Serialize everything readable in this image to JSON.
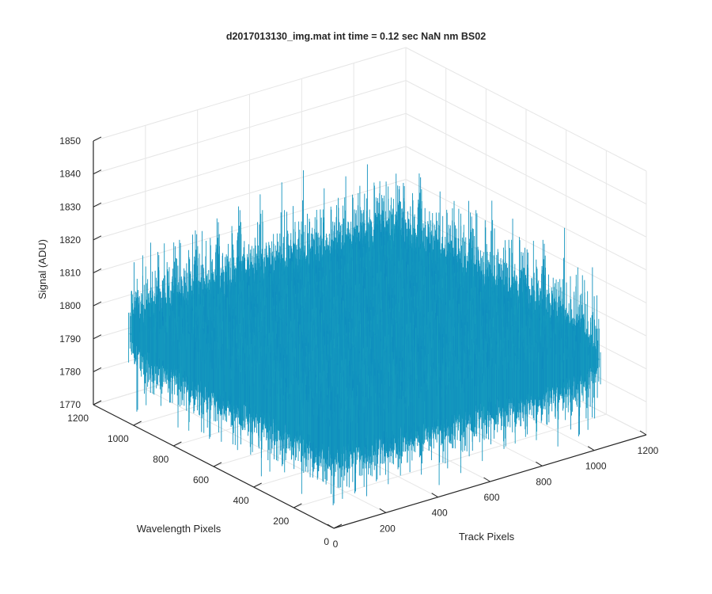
{
  "chart_data": {
    "type": "surface",
    "title": "d2017013130_img.mat int time = 0.12 sec  NaN nm BS02",
    "xlabel": "Track Pixels",
    "ylabel": "Wavelength Pixels",
    "zlabel": "Signal (ADU)",
    "xlim": [
      0,
      1200
    ],
    "ylim": [
      0,
      1200
    ],
    "zlim": [
      1770,
      1850
    ],
    "xticks": [
      "0",
      "200",
      "400",
      "600",
      "800",
      "1000",
      "1200"
    ],
    "yticks": [
      "0",
      "200",
      "400",
      "600",
      "800",
      "1000",
      "1200"
    ],
    "zticks": [
      "1770",
      "1780",
      "1790",
      "1800",
      "1810",
      "1820",
      "1830",
      "1840",
      "1850"
    ],
    "x_extent": [
      0,
      1024
    ],
    "y_extent": [
      0,
      1024
    ],
    "z_mean": 1797,
    "z_noise_range": [
      1772,
      1845
    ],
    "grid": true,
    "colormap": "parula",
    "colors": {
      "low": "#0072bd",
      "mid": "#1faa9b",
      "high": "#e2c23a",
      "axis": "#262626",
      "grid": "#e6e6e6"
    }
  }
}
